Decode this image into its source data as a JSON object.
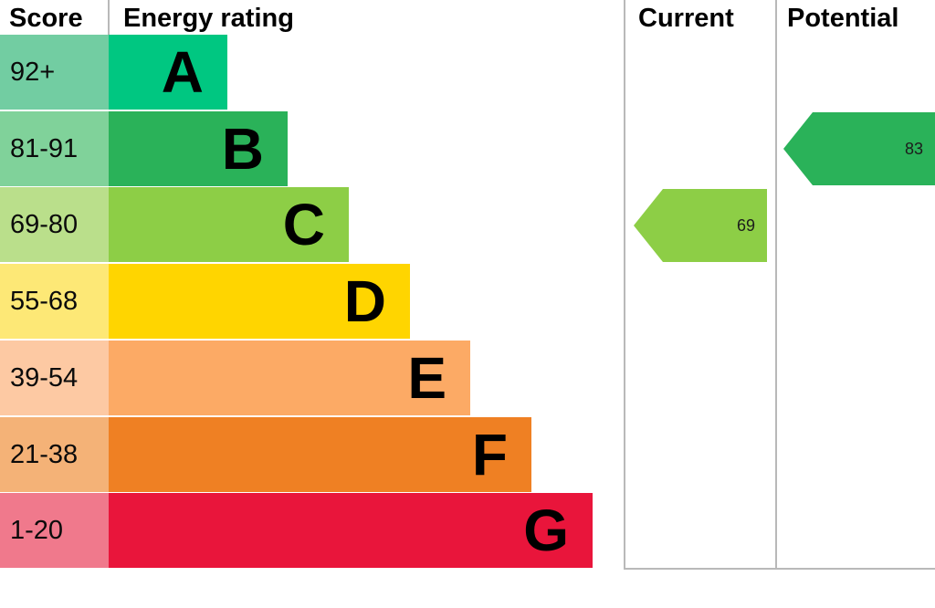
{
  "header": {
    "score": "Score",
    "energy_rating": "Energy rating",
    "current": "Current",
    "potential": "Potential"
  },
  "bands": [
    {
      "range": "92+",
      "letter": "A",
      "bar_color": "#00c781",
      "score_bg": "#72cda2"
    },
    {
      "range": "81-91",
      "letter": "B",
      "bar_color": "#2ab259",
      "score_bg": "#80d29a"
    },
    {
      "range": "69-80",
      "letter": "C",
      "bar_color": "#8dce46",
      "score_bg": "#badf8b"
    },
    {
      "range": "55-68",
      "letter": "D",
      "bar_color": "#ffd500",
      "score_bg": "#fde876"
    },
    {
      "range": "39-54",
      "letter": "E",
      "bar_color": "#fcaa65",
      "score_bg": "#fdc9a3"
    },
    {
      "range": "21-38",
      "letter": "F",
      "bar_color": "#ef8023",
      "score_bg": "#f4b277"
    },
    {
      "range": "1-20",
      "letter": "G",
      "bar_color": "#e9153b",
      "score_bg": "#f0798c"
    }
  ],
  "current_arrow": {
    "value": "69",
    "color": "#8dce46"
  },
  "potential_arrow": {
    "value": "83",
    "color": "#2ab259"
  },
  "chart_data": {
    "type": "bar",
    "title": "Energy rating",
    "categories": [
      "A",
      "B",
      "C",
      "D",
      "E",
      "F",
      "G"
    ],
    "score_ranges": [
      "92+",
      "81-91",
      "69-80",
      "55-68",
      "39-54",
      "21-38",
      "1-20"
    ],
    "band_colors": [
      "#00c781",
      "#2ab259",
      "#8dce46",
      "#ffd500",
      "#fcaa65",
      "#ef8023",
      "#e9153b"
    ],
    "bar_lengths_relative": [
      1,
      1.51,
      2.02,
      2.54,
      3.05,
      3.56,
      4.08
    ],
    "current": {
      "value": 69,
      "band": "C"
    },
    "potential": {
      "value": 83,
      "band": "B"
    },
    "legend_position": "none",
    "grid": false
  }
}
